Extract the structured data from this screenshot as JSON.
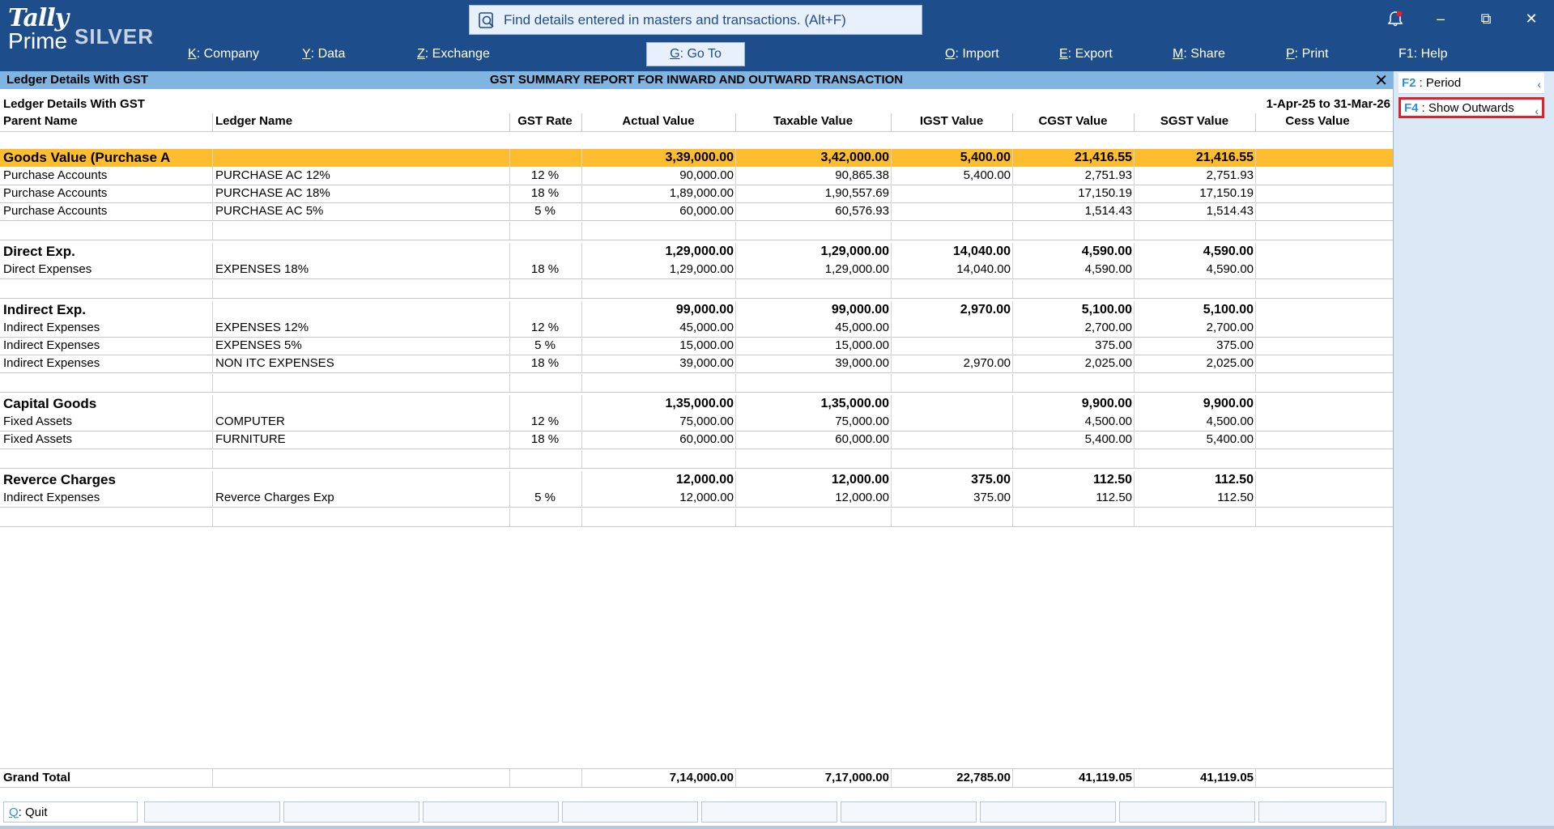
{
  "app": {
    "logo_tally": "Tally",
    "logo_prime": "Prime",
    "edition": "SILVER"
  },
  "search": {
    "placeholder": "Find details entered in masters and transactions. (Alt+F)"
  },
  "menu": [
    {
      "key": "K",
      "label": "Company"
    },
    {
      "key": "Y",
      "label": "Data"
    },
    {
      "key": "Z",
      "label": "Exchange"
    },
    {
      "key": "G",
      "label": "Go To"
    },
    {
      "key": "O",
      "label": "Import"
    },
    {
      "key": "E",
      "label": "Export"
    },
    {
      "key": "M",
      "label": "Share"
    },
    {
      "key": "P",
      "label": "Print"
    },
    {
      "key": "F1",
      "label": "Help"
    }
  ],
  "title": {
    "left": "Ledger Details With GST",
    "center": "GST SUMMARY REPORT FOR INWARD AND OUTWARD TRANSACTION"
  },
  "report": {
    "subtitle": "Ledger Details With GST",
    "period": "1-Apr-25 to 31-Mar-26",
    "columns": [
      "Parent Name",
      "Ledger Name",
      "GST Rate",
      "Actual Value",
      "Taxable Value",
      "IGST Value",
      "CGST Value",
      "SGST Value",
      "Cess Value"
    ]
  },
  "groups": [
    {
      "name": "Goods Value (Purchase Ac)",
      "actual": "3,39,000.00",
      "taxable": "3,42,000.00",
      "igst": "5,400.00",
      "cgst": "21,416.55",
      "sgst": "21,416.55",
      "rows": [
        {
          "parent": "Purchase Accounts",
          "ledger": "PURCHASE AC 12%",
          "rate": "12 %",
          "actual": "90,000.00",
          "taxable": "90,865.38",
          "igst": "5,400.00",
          "cgst": "2,751.93",
          "sgst": "2,751.93"
        },
        {
          "parent": "Purchase Accounts",
          "ledger": "PURCHASE AC 18%",
          "rate": "18 %",
          "actual": "1,89,000.00",
          "taxable": "1,90,557.69",
          "igst": "",
          "cgst": "17,150.19",
          "sgst": "17,150.19"
        },
        {
          "parent": "Purchase Accounts",
          "ledger": "PURCHASE AC 5%",
          "rate": "5 %",
          "actual": "60,000.00",
          "taxable": "60,576.93",
          "igst": "",
          "cgst": "1,514.43",
          "sgst": "1,514.43"
        }
      ]
    },
    {
      "name": "Direct Exp.",
      "actual": "1,29,000.00",
      "taxable": "1,29,000.00",
      "igst": "14,040.00",
      "cgst": "4,590.00",
      "sgst": "4,590.00",
      "rows": [
        {
          "parent": "Direct Expenses",
          "ledger": "EXPENSES 18%",
          "rate": "18 %",
          "actual": "1,29,000.00",
          "taxable": "1,29,000.00",
          "igst": "14,040.00",
          "cgst": "4,590.00",
          "sgst": "4,590.00"
        }
      ]
    },
    {
      "name": "Indirect Exp.",
      "actual": "99,000.00",
      "taxable": "99,000.00",
      "igst": "2,970.00",
      "cgst": "5,100.00",
      "sgst": "5,100.00",
      "rows": [
        {
          "parent": "Indirect Expenses",
          "ledger": "EXPENSES 12%",
          "rate": "12 %",
          "actual": "45,000.00",
          "taxable": "45,000.00",
          "igst": "",
          "cgst": "2,700.00",
          "sgst": "2,700.00"
        },
        {
          "parent": "Indirect Expenses",
          "ledger": "EXPENSES 5%",
          "rate": "5 %",
          "actual": "15,000.00",
          "taxable": "15,000.00",
          "igst": "",
          "cgst": "375.00",
          "sgst": "375.00"
        },
        {
          "parent": "Indirect Expenses",
          "ledger": "NON ITC EXPENSES",
          "rate": "18 %",
          "actual": "39,000.00",
          "taxable": "39,000.00",
          "igst": "2,970.00",
          "cgst": "2,025.00",
          "sgst": "2,025.00"
        }
      ]
    },
    {
      "name": "Capital Goods",
      "actual": "1,35,000.00",
      "taxable": "1,35,000.00",
      "igst": "",
      "cgst": "9,900.00",
      "sgst": "9,900.00",
      "rows": [
        {
          "parent": "Fixed Assets",
          "ledger": "COMPUTER",
          "rate": "12 %",
          "actual": "75,000.00",
          "taxable": "75,000.00",
          "igst": "",
          "cgst": "4,500.00",
          "sgst": "4,500.00"
        },
        {
          "parent": "Fixed Assets",
          "ledger": "FURNITURE",
          "rate": "18 %",
          "actual": "60,000.00",
          "taxable": "60,000.00",
          "igst": "",
          "cgst": "5,400.00",
          "sgst": "5,400.00"
        }
      ]
    },
    {
      "name": "Reverce Charges",
      "actual": "12,000.00",
      "taxable": "12,000.00",
      "igst": "375.00",
      "cgst": "112.50",
      "sgst": "112.50",
      "rows": [
        {
          "parent": "Indirect Expenses",
          "ledger": "Reverce Charges Exp",
          "rate": "5 %",
          "actual": "12,000.00",
          "taxable": "12,000.00",
          "igst": "375.00",
          "cgst": "112.50",
          "sgst": "112.50"
        }
      ]
    }
  ],
  "grand_total": {
    "label": "Grand Total",
    "actual": "7,14,000.00",
    "taxable": "7,17,000.00",
    "igst": "22,785.00",
    "cgst": "41,119.05",
    "sgst": "41,119.05"
  },
  "right_panel": [
    {
      "key": "F2",
      "label": "Period"
    },
    {
      "key": "F4",
      "label": "Show Outwards"
    }
  ],
  "footer": {
    "quit_key": "Q",
    "quit_label": "Quit"
  },
  "colors": {
    "header_bg": "#1e4d8c",
    "title_bg": "#7fb5e0",
    "highlight_row": "#fdbd2f",
    "panel_bg": "#dbe9f7",
    "focus_border": "#e0202a"
  }
}
